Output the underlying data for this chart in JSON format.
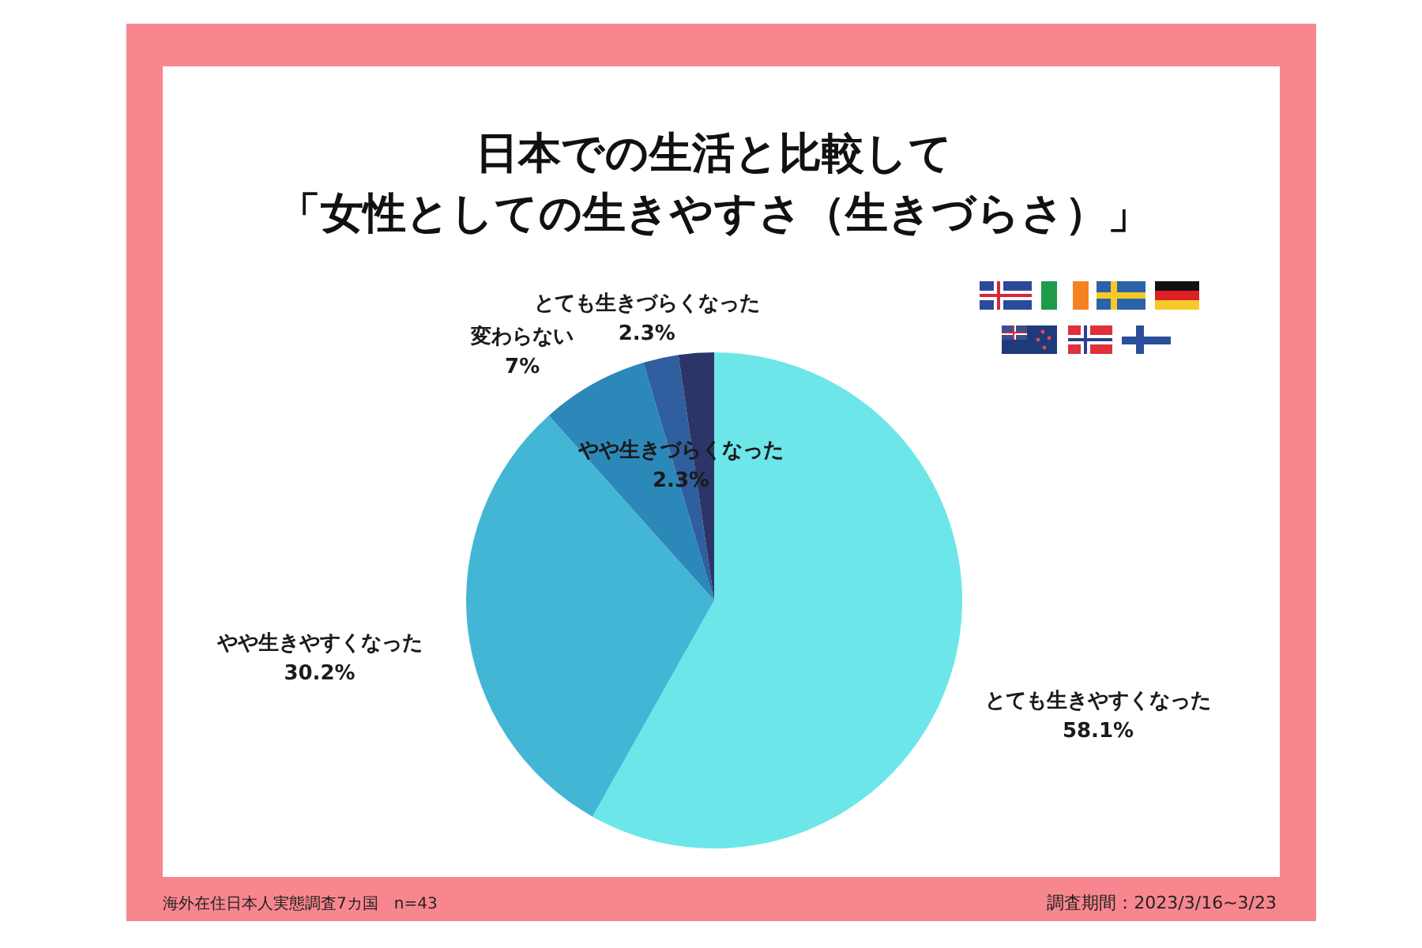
{
  "chart_data": {
    "type": "pie",
    "title": "日本での生活と比較して",
    "subtitle": "「女性としての生きやすさ（生きづらさ）」",
    "categories": [
      "とても生きやすくなった",
      "やや生きやすくなった",
      "変わらない",
      "やや生きづらくなった",
      "とても生きづらくなった"
    ],
    "values": [
      58.1,
      30.2,
      7,
      2.3,
      2.3
    ],
    "colors": [
      "#6ce6e9",
      "#43b6d6",
      "#2d88ba",
      "#2f5f9e",
      "#2c3568"
    ],
    "value_labels": [
      "58.1%",
      "30.2%",
      "7%",
      "2.3%",
      "2.3%"
    ],
    "annotations": [
      "海外在住日本人実態調査7カ国　n=43",
      "調査期間：2023/3/16~3/23"
    ]
  }
}
